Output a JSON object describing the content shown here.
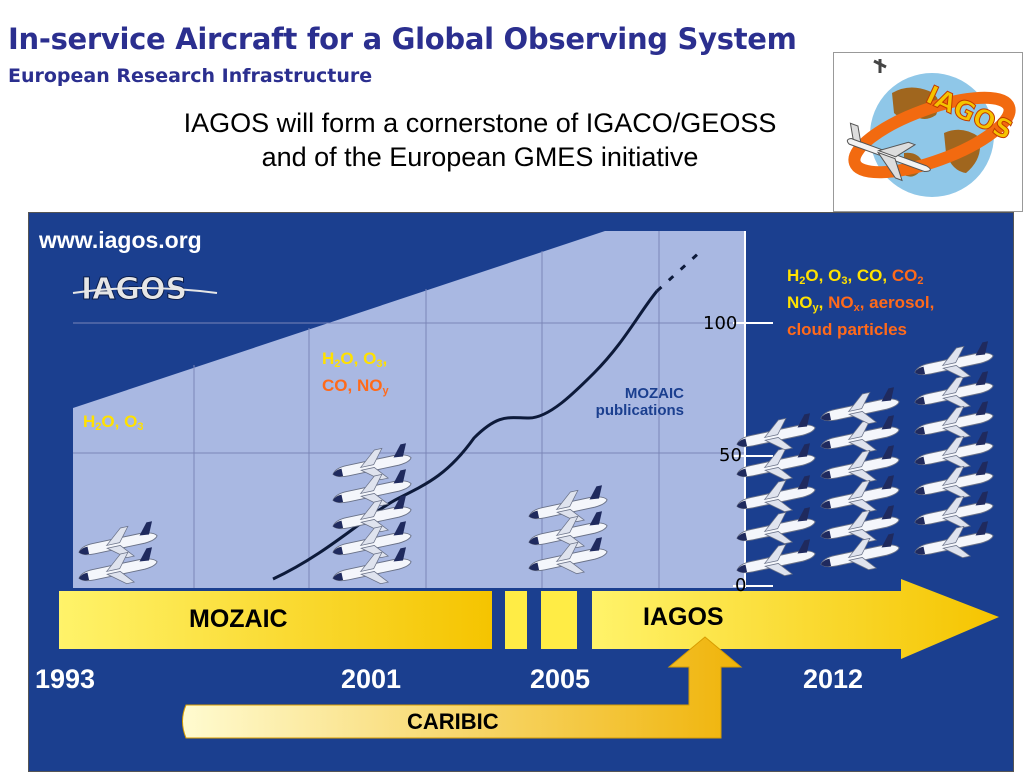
{
  "header": {
    "title": "In-service Aircraft for a Global Observing System",
    "subtitle": "European Research Infrastructure",
    "headline_line1": "IAGOS will form a cornerstone of IGACO/GEOSS",
    "headline_line2": "and of the European GMES initiative"
  },
  "logo": {
    "text": "IAGOS",
    "icon": "globe-airplane-logo-icon"
  },
  "panel": {
    "url": "www.iagos.org",
    "emblem_text": "IAGOS",
    "gases_1993": {
      "a": "H",
      "b": "2",
      "c": "O, O",
      "d": "3"
    },
    "gases_2001_line1": {
      "a": "H",
      "b": "2",
      "c": "O, O",
      "d": "3",
      "e": ","
    },
    "gases_2001_line2": {
      "a": "CO, NO",
      "b": "y"
    },
    "gases_2012_line1": {
      "a": "H",
      "b": "2",
      "c": "O, O",
      "d": "3",
      "e": ", CO, ",
      "f": "CO",
      "g": "2"
    },
    "gases_2012_line2": {
      "a": "NO",
      "b": "y",
      "c": ", ",
      "d": "NO",
      "e": "x",
      "f": ", aerosol,"
    },
    "gases_2012_line3": "cloud particles",
    "publications_label_line1": "MOZAIC",
    "publications_label_line2": "publications",
    "axis_ticks": [
      "100",
      "50",
      "0"
    ],
    "timeline": {
      "mozaic_label": "MOZAIC",
      "iagos_label": "IAGOS",
      "caribic_label": "CARIBIC",
      "years": [
        "1993",
        "2001",
        "2005",
        "2012"
      ]
    }
  },
  "colors": {
    "title": "#2b2f8f",
    "panel_bg": "#1b3f8f",
    "chart_bg": "#a9b8e2",
    "gas_yellow": "#ffe100",
    "gas_orange": "#ff6a1a",
    "arrow_yellow": "#ffe82a"
  },
  "aircraft_counts": {
    "1993": 2,
    "2001": 5,
    "2005": 3,
    "2012": 18
  }
}
